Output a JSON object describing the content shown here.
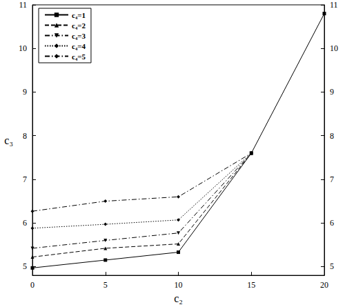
{
  "chart_data": {
    "type": "line",
    "x_label": "c₂",
    "y_label": "c₃",
    "x": [
      0,
      5,
      10,
      15,
      20
    ],
    "series": [
      {
        "name": "c₄=1",
        "color": "#000000",
        "marker": "square",
        "line_style": "solid",
        "values": [
          4.97,
          5.15,
          5.33,
          7.6,
          10.8
        ]
      },
      {
        "name": "c₄=2",
        "color": "#000000",
        "marker": "triangle-up",
        "line_style": "dashed",
        "values": [
          5.22,
          5.42,
          5.52,
          7.6,
          null
        ]
      },
      {
        "name": "c₄=3",
        "color": "#000000",
        "marker": "triangle-down",
        "line_style": "dashdot",
        "values": [
          5.42,
          5.6,
          5.77,
          7.6,
          null
        ]
      },
      {
        "name": "c₄=4",
        "color": "#000000",
        "marker": "diamond",
        "line_style": "dotted",
        "values": [
          5.88,
          5.97,
          6.07,
          7.6,
          null
        ]
      },
      {
        "name": "c₄=5",
        "color": "#000000",
        "marker": "diamond",
        "line_style": "dashdot",
        "values": [
          6.27,
          6.5,
          6.6,
          7.6,
          null
        ]
      }
    ],
    "xlim": [
      0,
      20
    ],
    "xticks": [
      0,
      5,
      10,
      15,
      20
    ],
    "ylim": [
      4.8,
      11
    ],
    "yticks": [
      5,
      6,
      7,
      8,
      9,
      10,
      11
    ],
    "y2lim": [
      4.8,
      11
    ],
    "y2ticks": [
      5,
      6,
      7,
      8,
      9,
      10,
      11
    ],
    "legend": "upper left",
    "grid": false
  }
}
